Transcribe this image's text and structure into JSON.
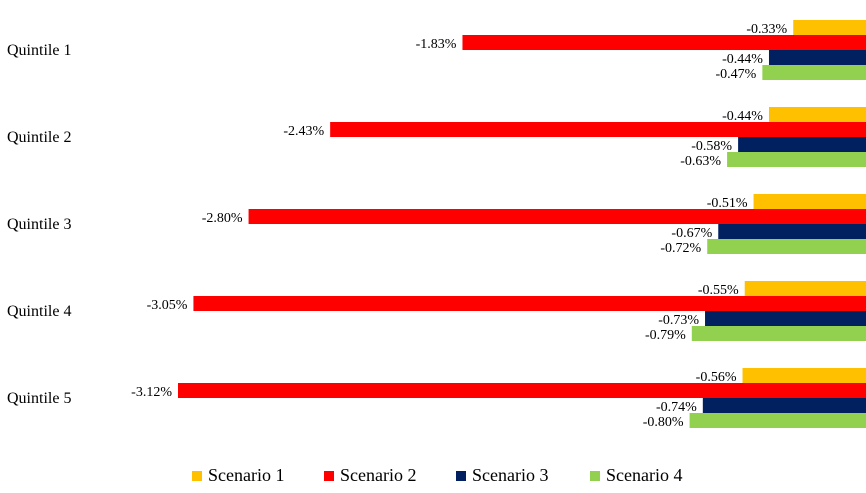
{
  "chart_data": {
    "type": "bar",
    "orientation": "horizontal",
    "categories": [
      "Quintile 1",
      "Quintile 2",
      "Quintile 3",
      "Quintile 4",
      "Quintile 5"
    ],
    "series": [
      {
        "name": "Scenario 1",
        "color": "#FFC000",
        "values": [
          -0.33,
          -0.44,
          -0.51,
          -0.55,
          -0.56
        ],
        "labels": [
          "-0.33%",
          "-0.44%",
          "-0.51%",
          "-0.55%",
          "-0.56%"
        ]
      },
      {
        "name": "Scenario 2",
        "color": "#FF0000",
        "values": [
          -1.83,
          -2.43,
          -2.8,
          -3.05,
          -3.12
        ],
        "labels": [
          "-1.83%",
          "-2.43%",
          "-2.80%",
          "-3.05%",
          "-3.12%"
        ]
      },
      {
        "name": "Scenario 3",
        "color": "#002060",
        "values": [
          -0.44,
          -0.58,
          -0.67,
          -0.73,
          -0.74
        ],
        "labels": [
          "-0.44%",
          "-0.58%",
          "-0.67%",
          "-0.73%",
          "-0.74%"
        ]
      },
      {
        "name": "Scenario 4",
        "color": "#92D050",
        "values": [
          -0.47,
          -0.63,
          -0.72,
          -0.79,
          -0.8
        ],
        "labels": [
          "-0.47%",
          "-0.63%",
          "-0.72%",
          "-0.79%",
          "-0.80%"
        ]
      }
    ],
    "value_unit": "%",
    "xlim": [
      -3.12,
      0
    ],
    "legend_position": "bottom",
    "grid": false,
    "title": "",
    "xlabel": "",
    "ylabel": ""
  }
}
